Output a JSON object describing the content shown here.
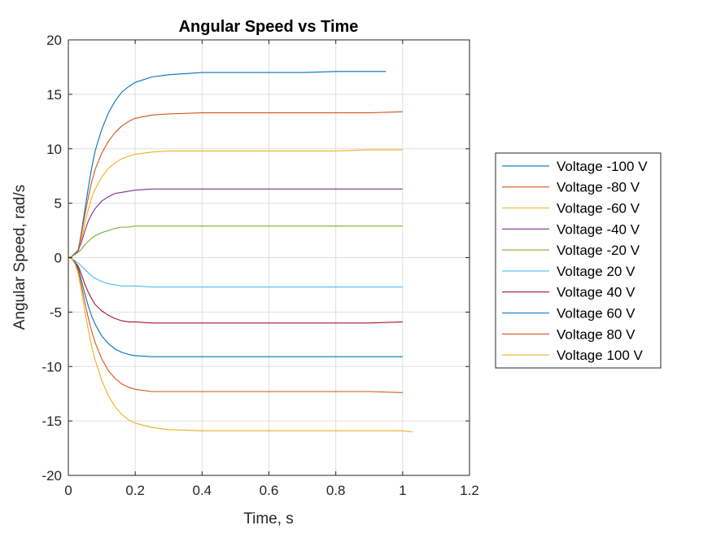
{
  "chart_data": {
    "type": "line",
    "title": "Angular Speed vs Time",
    "xlabel": "Time, s",
    "ylabel": "Angular Speed, rad/s",
    "xlim": [
      0,
      1.2
    ],
    "ylim": [
      -20,
      20
    ],
    "xticks": [
      0,
      0.2,
      0.4,
      0.6,
      0.8,
      1,
      1.2
    ],
    "xtick_labels": [
      "0",
      "0.2",
      "0.4",
      "0.6",
      "0.8",
      "1",
      "1.2"
    ],
    "yticks": [
      -20,
      -15,
      -10,
      -5,
      0,
      5,
      10,
      15,
      20
    ],
    "ytick_labels": [
      "-20",
      "-15",
      "-10",
      "-5",
      "0",
      "5",
      "10",
      "15",
      "20"
    ],
    "grid": true,
    "legend_position": "outside-right",
    "series": [
      {
        "name": "Voltage -100 V",
        "color": "#0072BD",
        "x": [
          0,
          0.01,
          0.02,
          0.03,
          0.04,
          0.05,
          0.06,
          0.07,
          0.08,
          0.1,
          0.12,
          0.14,
          0.16,
          0.18,
          0.2,
          0.25,
          0.3,
          0.4,
          0.5,
          0.6,
          0.7,
          0.8,
          0.9,
          0.95
        ],
        "y": [
          0,
          0.1,
          0.3,
          0.7,
          2.5,
          4.5,
          6.5,
          8.3,
          9.8,
          11.8,
          13.3,
          14.4,
          15.2,
          15.7,
          16.1,
          16.6,
          16.8,
          17.0,
          17.0,
          17.0,
          17.0,
          17.1,
          17.1,
          17.1
        ]
      },
      {
        "name": "Voltage -80 V",
        "color": "#D95319",
        "x": [
          0,
          0.01,
          0.02,
          0.03,
          0.04,
          0.05,
          0.06,
          0.07,
          0.08,
          0.1,
          0.12,
          0.14,
          0.16,
          0.18,
          0.2,
          0.25,
          0.3,
          0.4,
          0.5,
          0.6,
          0.7,
          0.8,
          0.9,
          1.0
        ],
        "y": [
          0,
          0.1,
          0.3,
          0.7,
          2.3,
          4.0,
          5.6,
          7.0,
          8.1,
          9.6,
          10.7,
          11.5,
          12.1,
          12.5,
          12.8,
          13.1,
          13.2,
          13.3,
          13.3,
          13.3,
          13.3,
          13.3,
          13.3,
          13.4
        ]
      },
      {
        "name": "Voltage -60 V",
        "color": "#EDB120",
        "x": [
          0,
          0.01,
          0.02,
          0.03,
          0.04,
          0.05,
          0.06,
          0.07,
          0.08,
          0.1,
          0.12,
          0.14,
          0.16,
          0.18,
          0.2,
          0.25,
          0.3,
          0.4,
          0.5,
          0.6,
          0.7,
          0.8,
          0.9,
          1.0
        ],
        "y": [
          0,
          0.1,
          0.3,
          0.6,
          1.8,
          3.2,
          4.5,
          5.5,
          6.3,
          7.4,
          8.2,
          8.7,
          9.1,
          9.3,
          9.5,
          9.7,
          9.8,
          9.8,
          9.8,
          9.8,
          9.8,
          9.8,
          9.9,
          9.9
        ]
      },
      {
        "name": "Voltage -40 V",
        "color": "#7E2F8E",
        "x": [
          0,
          0.01,
          0.02,
          0.03,
          0.04,
          0.05,
          0.06,
          0.07,
          0.08,
          0.1,
          0.12,
          0.14,
          0.16,
          0.18,
          0.2,
          0.25,
          0.3,
          0.4,
          0.5,
          0.6,
          0.7,
          0.8,
          0.9,
          1.0
        ],
        "y": [
          0,
          0.1,
          0.4,
          0.7,
          1.5,
          2.5,
          3.4,
          4.0,
          4.5,
          5.2,
          5.6,
          5.9,
          6.0,
          6.1,
          6.2,
          6.3,
          6.3,
          6.3,
          6.3,
          6.3,
          6.3,
          6.3,
          6.3,
          6.3
        ]
      },
      {
        "name": "Voltage -20 V",
        "color": "#77AC30",
        "x": [
          0,
          0.01,
          0.02,
          0.03,
          0.04,
          0.05,
          0.06,
          0.07,
          0.08,
          0.1,
          0.12,
          0.14,
          0.16,
          0.18,
          0.2,
          0.25,
          0.3,
          0.4,
          0.5,
          0.6,
          0.7,
          0.8,
          0.9,
          1.0
        ],
        "y": [
          0,
          0.1,
          0.3,
          0.5,
          0.8,
          1.2,
          1.5,
          1.8,
          2.0,
          2.3,
          2.5,
          2.7,
          2.8,
          2.8,
          2.9,
          2.9,
          2.9,
          2.9,
          2.9,
          2.9,
          2.9,
          2.9,
          2.9,
          2.9
        ]
      },
      {
        "name": "Voltage 20 V",
        "color": "#4DBEEE",
        "x": [
          0,
          0.01,
          0.02,
          0.03,
          0.04,
          0.05,
          0.06,
          0.07,
          0.08,
          0.1,
          0.12,
          0.14,
          0.16,
          0.18,
          0.2,
          0.25,
          0.3,
          0.4,
          0.5,
          0.6,
          0.7,
          0.8,
          0.9,
          1.0
        ],
        "y": [
          0,
          -0.1,
          -0.3,
          -0.5,
          -0.8,
          -1.1,
          -1.4,
          -1.7,
          -1.9,
          -2.2,
          -2.4,
          -2.5,
          -2.6,
          -2.6,
          -2.6,
          -2.7,
          -2.7,
          -2.7,
          -2.7,
          -2.7,
          -2.7,
          -2.7,
          -2.7,
          -2.7
        ]
      },
      {
        "name": "Voltage 40 V",
        "color": "#A2142F",
        "x": [
          0,
          0.01,
          0.02,
          0.03,
          0.04,
          0.05,
          0.06,
          0.07,
          0.08,
          0.1,
          0.12,
          0.14,
          0.16,
          0.18,
          0.2,
          0.25,
          0.3,
          0.4,
          0.5,
          0.6,
          0.7,
          0.8,
          0.9,
          1.0
        ],
        "y": [
          0,
          -0.1,
          -0.4,
          -0.8,
          -1.6,
          -2.5,
          -3.2,
          -3.8,
          -4.3,
          -4.9,
          -5.3,
          -5.6,
          -5.8,
          -5.9,
          -5.9,
          -6.0,
          -6.0,
          -6.0,
          -6.0,
          -6.0,
          -6.0,
          -6.0,
          -6.0,
          -5.9
        ]
      },
      {
        "name": "Voltage 60 V",
        "color": "#0072BD",
        "x": [
          0,
          0.01,
          0.02,
          0.03,
          0.04,
          0.05,
          0.06,
          0.07,
          0.08,
          0.1,
          0.12,
          0.14,
          0.16,
          0.18,
          0.2,
          0.25,
          0.3,
          0.4,
          0.5,
          0.6,
          0.7,
          0.8,
          0.9,
          1.0
        ],
        "y": [
          0,
          -0.1,
          -0.4,
          -1.0,
          -2.2,
          -3.4,
          -4.5,
          -5.4,
          -6.1,
          -7.2,
          -7.9,
          -8.4,
          -8.7,
          -8.9,
          -9.0,
          -9.1,
          -9.1,
          -9.1,
          -9.1,
          -9.1,
          -9.1,
          -9.1,
          -9.1,
          -9.1
        ]
      },
      {
        "name": "Voltage 80 V",
        "color": "#D95319",
        "x": [
          0,
          0.01,
          0.02,
          0.03,
          0.04,
          0.05,
          0.06,
          0.07,
          0.08,
          0.1,
          0.12,
          0.14,
          0.16,
          0.18,
          0.2,
          0.25,
          0.3,
          0.4,
          0.5,
          0.6,
          0.7,
          0.8,
          0.9,
          1.0
        ],
        "y": [
          0,
          -0.1,
          -0.5,
          -1.2,
          -2.7,
          -4.2,
          -5.6,
          -6.8,
          -7.8,
          -9.3,
          -10.4,
          -11.1,
          -11.6,
          -11.9,
          -12.1,
          -12.3,
          -12.3,
          -12.3,
          -12.3,
          -12.3,
          -12.3,
          -12.3,
          -12.3,
          -12.4
        ]
      },
      {
        "name": "Voltage 100 V",
        "color": "#EDB120",
        "x": [
          0,
          0.01,
          0.02,
          0.03,
          0.04,
          0.05,
          0.06,
          0.07,
          0.08,
          0.1,
          0.12,
          0.14,
          0.16,
          0.18,
          0.2,
          0.25,
          0.3,
          0.4,
          0.5,
          0.6,
          0.7,
          0.8,
          0.9,
          1.0,
          1.03
        ],
        "y": [
          0,
          -0.1,
          -0.6,
          -1.5,
          -3.2,
          -5.0,
          -6.7,
          -8.2,
          -9.4,
          -11.3,
          -12.7,
          -13.7,
          -14.4,
          -14.9,
          -15.2,
          -15.6,
          -15.8,
          -15.9,
          -15.9,
          -15.9,
          -15.9,
          -15.9,
          -15.9,
          -15.9,
          -16.0
        ]
      }
    ]
  }
}
